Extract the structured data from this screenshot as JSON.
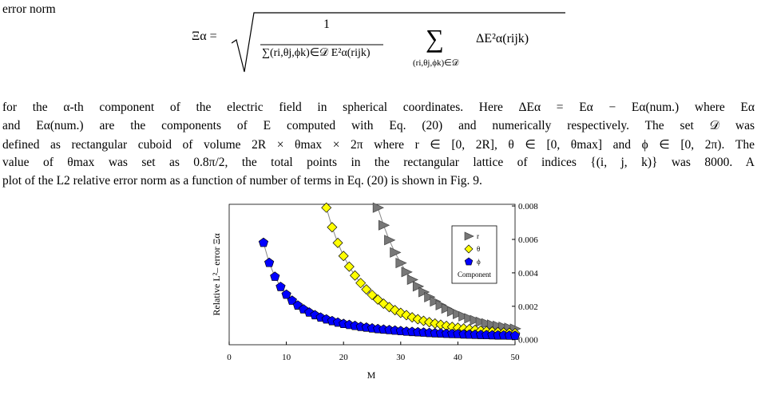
{
  "text": {
    "intro": "error norm",
    "formula": {
      "lhs": "Ξα =",
      "numerator": "1",
      "denominator": "∑(ri,θj,ϕk)∈𝒟 E²α(rijk)",
      "sum": "∑",
      "sum_index": "(ri,θj,ϕk)∈𝒟",
      "summand": "ΔE²α(rijk)"
    },
    "paragraph": [
      "for the α-th component of the electric field in spherical coordinates. Here ΔEα = Eα − Eα(num.) where Eα",
      "and Eα(num.) are the components of E computed with Eq. (20) and numerically respectively. The set 𝒟 was",
      "defined as rectangular cuboid of volume 2R × θmax × 2π where r ∈ [0, 2R], θ ∈ [0, θmax] and ϕ ∈ [0, 2π). The",
      "value of θmax was set as 0.8π/2, the total points in the rectangular lattice of indices {(i, j, k)} was 8000. A",
      "plot of the L2 relative error norm as a function of number of terms in Eq. (20) is shown in Fig. 9."
    ]
  },
  "chart_data": {
    "type": "scatter",
    "x_label": "M",
    "y_label": "Relative L²– error Ξα",
    "legend_title": "Component",
    "legend": "upper right",
    "connect_line_color": "#888888",
    "xlim": [
      0,
      50
    ],
    "xticks": [
      0,
      10,
      20,
      30,
      40,
      50
    ],
    "ylim": [
      -0.0003,
      0.0081
    ],
    "yticks": [
      {
        "value": 0,
        "label": "0.000"
      },
      {
        "value": 0.002,
        "label": "0.002"
      },
      {
        "value": 0.004,
        "label": "0.004"
      },
      {
        "value": 0.006,
        "label": "0.006"
      },
      {
        "value": 0.008,
        "label": "0.008"
      }
    ],
    "series": [
      {
        "name": "r",
        "color": "#777777",
        "marker": "triangle",
        "x": [
          26,
          27,
          28,
          29,
          30,
          31,
          32,
          33,
          34,
          35,
          36,
          37,
          38,
          39,
          40,
          41,
          42,
          43,
          44,
          45,
          46,
          47,
          48,
          49,
          50
        ],
        "values": [
          0.0079,
          0.00685,
          0.00596,
          0.00522,
          0.00459,
          0.00405,
          0.00359,
          0.00319,
          0.00285,
          0.00255,
          0.00229,
          0.00207,
          0.00187,
          0.00169,
          0.00154,
          0.0014,
          0.00128,
          0.00117,
          0.00107,
          0.00098,
          0.0009,
          0.00083,
          0.00077,
          0.00071,
          0.00066
        ]
      },
      {
        "name": "θ",
        "color": "#ffff00",
        "marker": "diamond",
        "x": [
          17,
          18,
          19,
          20,
          21,
          22,
          23,
          24,
          25,
          26,
          27,
          28,
          29,
          30,
          31,
          32,
          33,
          34,
          35,
          36,
          37,
          38,
          39,
          40,
          41,
          42,
          43,
          44,
          45,
          46,
          47,
          48,
          49,
          50
        ],
        "values": [
          0.0079,
          0.00673,
          0.00579,
          0.00501,
          0.00437,
          0.00384,
          0.00339,
          0.00301,
          0.00268,
          0.0024,
          0.00216,
          0.00195,
          0.00177,
          0.00161,
          0.00147,
          0.00134,
          0.00123,
          0.00113,
          0.00105,
          0.00097,
          0.0009,
          0.00083,
          0.00077,
          0.00072,
          0.00067,
          0.00063,
          0.00059,
          0.00055,
          0.00052,
          0.00049,
          0.00046,
          0.00043,
          0.00041,
          0.00039
        ]
      },
      {
        "name": "ϕ",
        "color": "#0000ff",
        "marker": "pentagon",
        "x": [
          6,
          7,
          8,
          9,
          10,
          11,
          12,
          13,
          14,
          15,
          16,
          17,
          18,
          19,
          20,
          21,
          22,
          23,
          24,
          25,
          26,
          27,
          28,
          29,
          30,
          31,
          32,
          33,
          34,
          35,
          36,
          37,
          38,
          39,
          40,
          41,
          42,
          43,
          44,
          45,
          46,
          47,
          48,
          49,
          50
        ],
        "values": [
          0.0058,
          0.0046,
          0.00377,
          0.00316,
          0.0027,
          0.00234,
          0.00205,
          0.00182,
          0.00163,
          0.00147,
          0.00133,
          0.00122,
          0.00112,
          0.00103,
          0.00095,
          0.00089,
          0.00083,
          0.00077,
          0.00073,
          0.00068,
          0.00064,
          0.00061,
          0.00058,
          0.00055,
          0.00052,
          0.00049,
          0.00047,
          0.00045,
          0.00043,
          0.00041,
          0.00039,
          0.00038,
          0.00036,
          0.00035,
          0.00034,
          0.00032,
          0.00031,
          0.0003,
          0.00029,
          0.00028,
          0.00027,
          0.00026,
          0.00026,
          0.00025,
          0.00024
        ]
      }
    ]
  }
}
